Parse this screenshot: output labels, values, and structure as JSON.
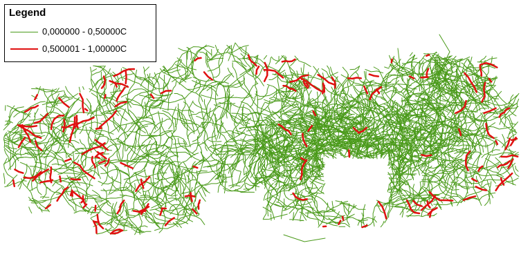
{
  "legend": {
    "title": "Legend",
    "items": [
      {
        "label": "0,000000 - 0,50000C",
        "color": "#4a9a1a",
        "style": "thin-line"
      },
      {
        "label": "0,500001 - 1,00000C",
        "color": "#e01010",
        "style": "thick-line"
      }
    ]
  }
}
